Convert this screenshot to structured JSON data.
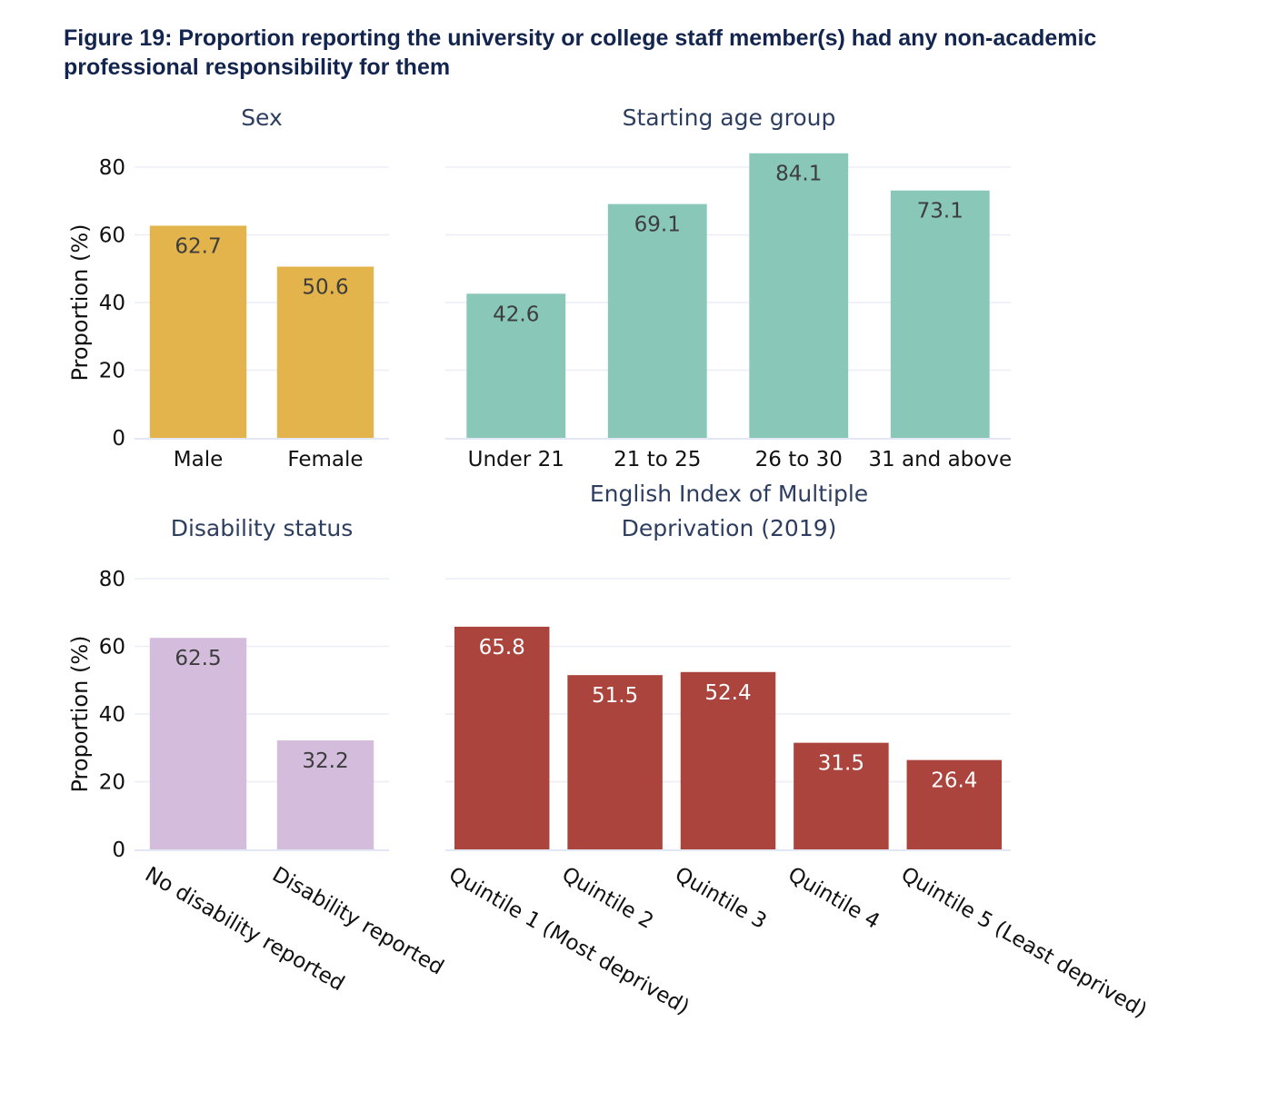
{
  "figure": {
    "title": "Figure 19: Proportion reporting the university or college staff member(s) had any non-academic professional responsibility for them"
  },
  "chart_data": [
    {
      "type": "bar",
      "title": "Sex",
      "categories": [
        "Male",
        "Female"
      ],
      "values": [
        62.7,
        50.6
      ],
      "value_labels": [
        "62.7",
        "50.6"
      ],
      "ylabel": "Proportion (%)",
      "xlabel": "",
      "ylim": [
        0,
        80
      ],
      "yticks": [
        0,
        20,
        40,
        60,
        80
      ],
      "ytick_labels": [
        "0",
        "20",
        "40",
        "60",
        "80"
      ],
      "color": "#e3b44c",
      "label_color": "#3d3d3d",
      "grid": true,
      "x_label_rotation": "none"
    },
    {
      "type": "bar",
      "title": "Starting age group",
      "categories": [
        "Under 21",
        "21 to 25",
        "26 to 30",
        "31 and above"
      ],
      "values": [
        42.6,
        69.1,
        84.1,
        73.1
      ],
      "value_labels": [
        "42.6",
        "69.1",
        "84.1",
        "73.1"
      ],
      "ylabel": "",
      "xlabel": "",
      "ylim": [
        0,
        80
      ],
      "shared_y_with": "Sex",
      "color": "#89c7b9",
      "label_color": "#3d3d3d",
      "grid": true,
      "x_label_rotation": "none"
    },
    {
      "type": "bar",
      "title": "Disability status",
      "categories": [
        "No disability reported",
        "Disability reported"
      ],
      "values": [
        62.5,
        32.2
      ],
      "value_labels": [
        "62.5",
        "32.2"
      ],
      "ylabel": "Proportion (%)",
      "xlabel": "",
      "ylim": [
        0,
        80
      ],
      "yticks": [
        0,
        20,
        40,
        60,
        80
      ],
      "ytick_labels": [
        "0",
        "20",
        "40",
        "60",
        "80"
      ],
      "color": "#d4bcdd",
      "label_color": "#3d3d3d",
      "grid": true,
      "x_label_rotation": "diagonal"
    },
    {
      "type": "bar",
      "title": "English Index of Multiple Deprivation (2019)",
      "title_lines": [
        "English Index of Multiple",
        "Deprivation (2019)"
      ],
      "categories": [
        "Quintile 1 (Most deprived)",
        "Quintile 2",
        "Quintile 3",
        "Quintile 4",
        "Quintile 5 (Least deprived)"
      ],
      "values": [
        65.8,
        51.5,
        52.4,
        31.5,
        26.4
      ],
      "value_labels": [
        "65.8",
        "51.5",
        "52.4",
        "31.5",
        "26.4"
      ],
      "ylabel": "",
      "xlabel": "",
      "ylim": [
        0,
        80
      ],
      "shared_y_with": "Disability status",
      "color": "#ab443c",
      "label_color": "#ffffff",
      "grid": true,
      "x_label_rotation": "diagonal"
    }
  ]
}
